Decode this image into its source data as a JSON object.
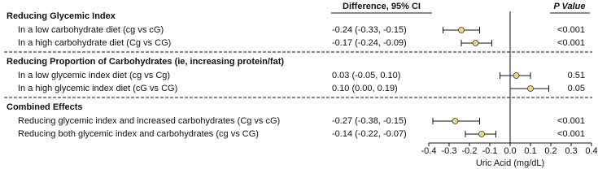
{
  "chart_data": {
    "type": "forest",
    "ci_header": "Difference, 95% CI",
    "p_header": "P Value",
    "x_label": "Uric Acid (mg/dL)",
    "xlim": [
      -0.4,
      0.4
    ],
    "xticks": [
      -0.4,
      -0.3,
      -0.2,
      -0.1,
      {
        "value": 0,
        "label": "0.0"
      },
      0.1,
      0.2,
      0.3,
      0.4
    ],
    "point_color": "#f3d57c",
    "sections": [
      {
        "title": "Reducing Glycemic Index",
        "rows": [
          {
            "label": "In a low carbohydrate diet (cg vs cG)",
            "value": -0.24,
            "lower": -0.33,
            "upper": -0.15,
            "value_label": "-0.24 (-0.33, -0.15)",
            "p": "<0.001"
          },
          {
            "label": "In a high carbohydrate diet (Cg vs CG)",
            "value": -0.17,
            "lower": -0.24,
            "upper": -0.09,
            "value_label": "-0.17 (-0.24, -0.09)",
            "p": "<0.001"
          }
        ]
      },
      {
        "title": "Reducing Proportion of Carbohydrates (ie, increasing protein/fat)",
        "rows": [
          {
            "label": "In a low glycemic index diet (cg vs Cg)",
            "value": 0.03,
            "lower": -0.05,
            "upper": 0.1,
            "value_label": "0.03 (-0.05, 0.10)",
            "p": "0.51"
          },
          {
            "label": "In a high glycemic index diet (cG vs CG)",
            "value": 0.1,
            "lower": 0.0,
            "upper": 0.19,
            "value_label": "0.10 (0.00, 0.19)",
            "p": "0.05"
          }
        ]
      },
      {
        "title": "Combined Effects",
        "rows": [
          {
            "label": "Reducing glycemic index and increased carbohydrates (Cg vs cG)",
            "value": -0.27,
            "lower": -0.38,
            "upper": -0.15,
            "value_label": "-0.27 (-0.38, -0.15)",
            "p": "<0.001"
          },
          {
            "label": "Reducing both glycemic index and carbohydrates (cg vs CG)",
            "value": -0.14,
            "lower": -0.22,
            "upper": -0.07,
            "value_label": "-0.14 (-0.22, -0.07)",
            "p": "<0.001"
          }
        ]
      }
    ]
  }
}
